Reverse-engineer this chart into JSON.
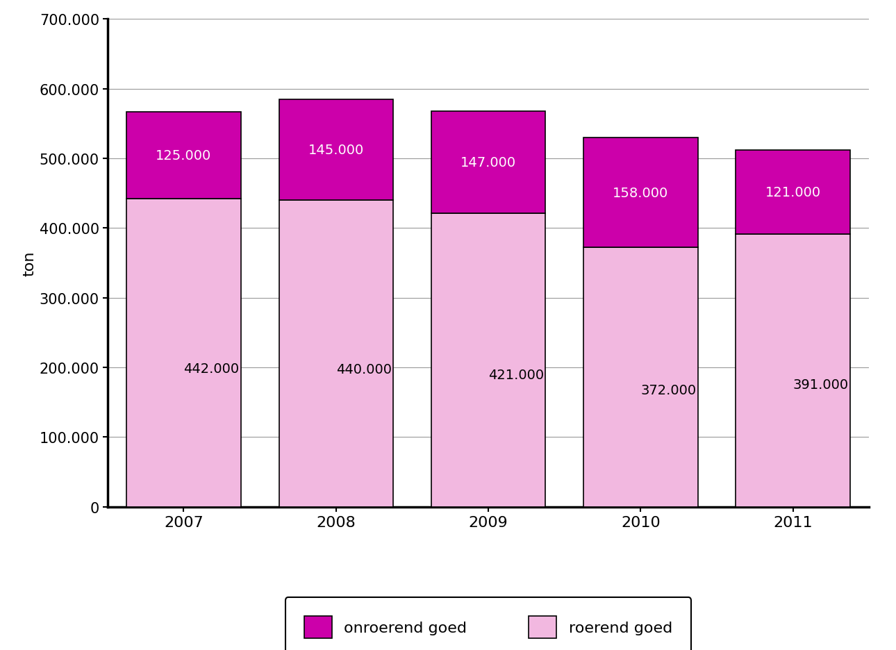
{
  "years": [
    2007,
    2008,
    2009,
    2010,
    2011
  ],
  "roerend": [
    442000,
    440000,
    421000,
    372000,
    391000
  ],
  "onroerend": [
    125000,
    145000,
    147000,
    158000,
    121000
  ],
  "color_roerend": "#F2B8E0",
  "color_onroerend": "#CC00AA",
  "ylabel": "ton",
  "ylim": [
    0,
    700000
  ],
  "yticks": [
    0,
    100000,
    200000,
    300000,
    400000,
    500000,
    600000,
    700000
  ],
  "legend_onroerend": "onroerend goed",
  "legend_roerend": "roerend goed",
  "bar_width": 0.75,
  "label_color_roerend": "#000000",
  "label_color_onroerend": "#ffffff",
  "background_color": "#ffffff",
  "grid_color": "#999999"
}
